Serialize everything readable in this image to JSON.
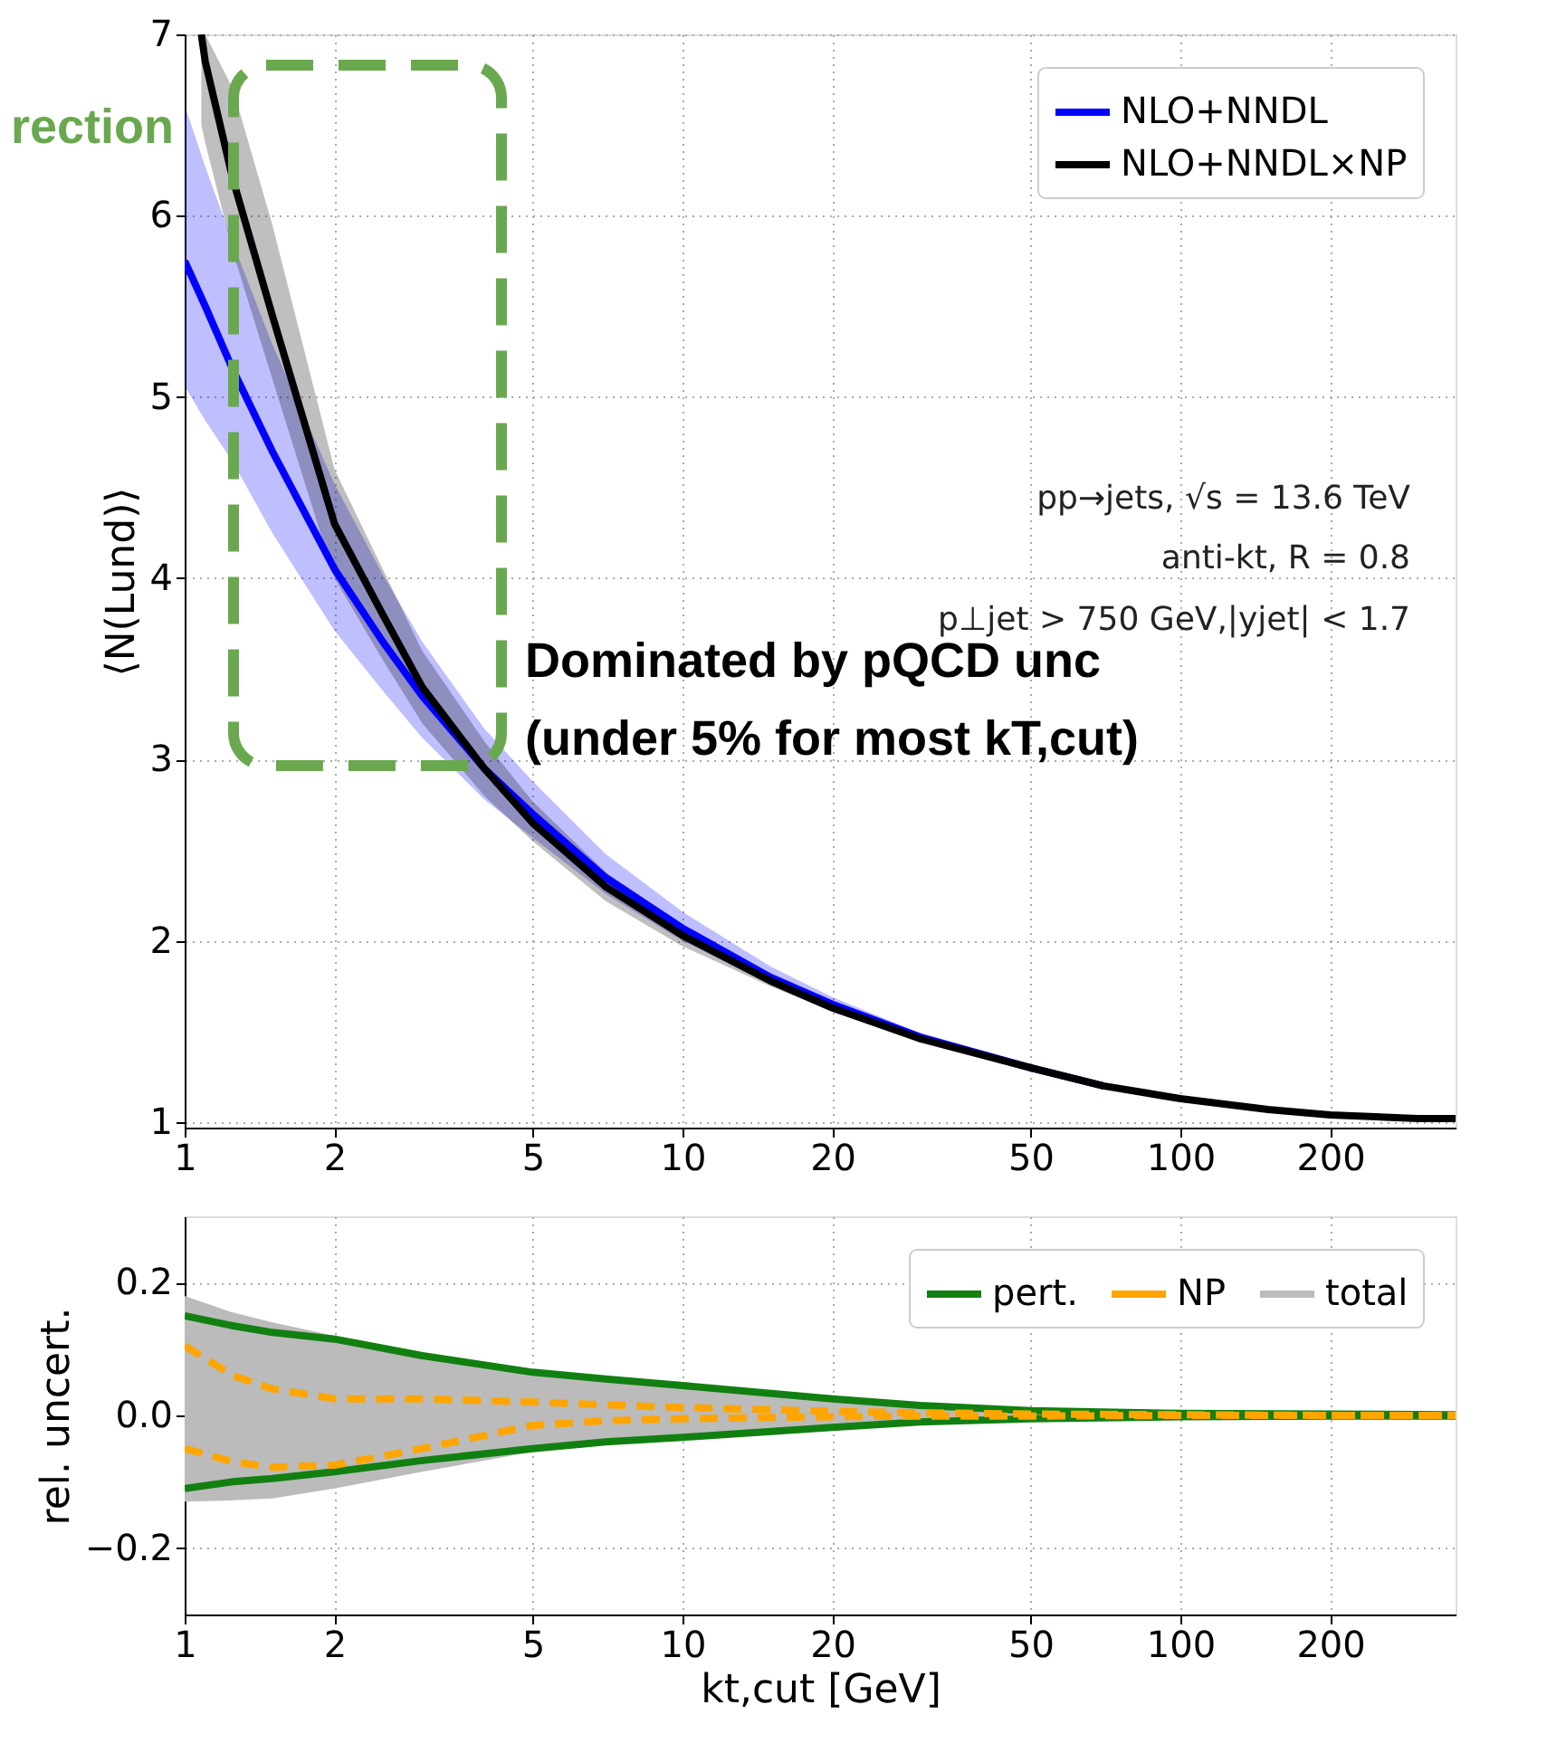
{
  "chart_data": [
    {
      "type": "line",
      "ylabel": "⟨N(Lund)⟩",
      "log": "x",
      "grid": true,
      "legend": "top right",
      "line_style": "solid",
      "xlim": [
        1,
        357
      ],
      "xticks": [
        1,
        2,
        5,
        10,
        20,
        50,
        100,
        200
      ],
      "ylim": [
        0.97,
        7
      ],
      "yticks": [
        1,
        2,
        3,
        4,
        5,
        6,
        7
      ],
      "annotations": [
        "pp→jets, √s = 13.6 TeV",
        "anti-kt, R = 0.8",
        "p⊥jet > 750 GeV,|yjet| < 1.7",
        "Dominated by pQCD unc",
        "(under 5% for most kT,cut)",
        "rection"
      ],
      "x": [
        1,
        1.1,
        1.25,
        1.5,
        2,
        2.5,
        3,
        4,
        5,
        7,
        10,
        15,
        20,
        30,
        50,
        70,
        100,
        150,
        200,
        300,
        357
      ],
      "series": [
        {
          "name": "NLO+NNDL",
          "color": "#0000ff",
          "values": [
            5.75,
            5.5,
            5.15,
            4.7,
            4.05,
            3.65,
            3.35,
            2.95,
            2.7,
            2.35,
            2.07,
            1.8,
            1.65,
            1.47,
            1.3,
            1.2,
            null,
            null,
            null,
            null,
            null
          ],
          "lower": [
            5.06,
            4.87,
            4.64,
            4.25,
            3.71,
            3.38,
            3.12,
            2.78,
            2.57,
            2.26,
            2.0,
            1.76,
            1.62,
            1.46,
            1.29,
            1.2,
            1.13,
            1.07,
            1.04,
            1.02,
            1.02
          ],
          "upper": [
            6.61,
            6.27,
            5.85,
            5.29,
            4.52,
            4.02,
            3.65,
            3.17,
            2.88,
            2.48,
            2.16,
            1.86,
            1.69,
            1.49,
            1.31,
            1.21,
            1.13,
            1.07,
            1.04,
            1.02,
            1.02
          ]
        },
        {
          "name": "NLO+NNDL×NP",
          "color": "#000000",
          "x": [
            1.08,
            1.1,
            1.25,
            1.5,
            2,
            2.5,
            3,
            4,
            5,
            7,
            10,
            15,
            20,
            30,
            50,
            70,
            100,
            150,
            200,
            300,
            357
          ],
          "values": [
            7.0,
            6.85,
            6.2,
            5.45,
            4.3,
            3.8,
            3.4,
            2.95,
            2.65,
            2.3,
            2.03,
            1.78,
            1.63,
            1.46,
            1.3,
            1.2,
            1.13,
            1.07,
            1.04,
            1.02,
            1.02
          ],
          "lower": [
            6.5,
            6.4,
            5.8,
            5.1,
            4.0,
            3.55,
            3.2,
            2.8,
            2.55,
            2.22,
            1.97,
            1.75,
            1.61,
            1.45,
            1.29,
            1.2,
            1.13,
            1.07,
            1.04,
            1.02,
            1.02
          ],
          "upper": [
            7.0,
            7.0,
            6.7,
            5.95,
            4.6,
            4.05,
            3.6,
            3.1,
            2.77,
            2.38,
            2.09,
            1.82,
            1.66,
            1.48,
            1.31,
            1.21,
            1.13,
            1.07,
            1.04,
            1.02,
            1.02
          ]
        }
      ]
    },
    {
      "type": "line",
      "xlabel": "kt,cut [GeV]",
      "ylabel": "rel. uncert.",
      "log": "x",
      "grid": true,
      "legend": "top right",
      "xlim": [
        1,
        357
      ],
      "xticks": [
        1,
        2,
        5,
        10,
        20,
        50,
        100,
        200
      ],
      "ylim": [
        -0.3,
        0.3
      ],
      "yticks": [
        {
          "value": 0.2,
          "label": "0.2"
        },
        {
          "value": 0,
          "label": "0.0"
        },
        {
          "value": -0.2,
          "label": "−0.2"
        }
      ],
      "x": [
        1,
        1.25,
        1.5,
        2,
        3,
        5,
        7,
        10,
        20,
        30,
        50,
        100,
        200,
        357
      ],
      "series": [
        {
          "name": "pert.",
          "color": "#118011",
          "line_style": "solid",
          "values": [
            0.15,
            0.135,
            0.125,
            0.115,
            0.09,
            0.065,
            0.055,
            0.045,
            0.025,
            0.015,
            0.007,
            0.003,
            0.002,
            0.001
          ]
        },
        {
          "color": "#118011",
          "line_style": "solid",
          "values": [
            -0.11,
            -0.1,
            -0.095,
            -0.085,
            -0.068,
            -0.05,
            -0.04,
            -0.033,
            -0.018,
            -0.01,
            -0.005,
            -0.002,
            -0.001,
            -0.001
          ]
        },
        {
          "name": "NP",
          "color": "#ffa500",
          "line_style": "dashed",
          "values": [
            0.105,
            0.06,
            0.04,
            0.025,
            0.025,
            0.02,
            0.016,
            0.012,
            0.006,
            0.004,
            0.002,
            0.001,
            0.0,
            0.0
          ]
        },
        {
          "color": "#ffa500",
          "line_style": "dashed",
          "values": [
            -0.05,
            -0.07,
            -0.078,
            -0.075,
            -0.05,
            -0.015,
            -0.008,
            -0.005,
            -0.002,
            -0.001,
            -0.001,
            0.0,
            0.0,
            0.0
          ]
        },
        {
          "name": "total",
          "color": "#bbbbbb",
          "values": [
            null,
            null,
            null,
            null,
            null,
            null,
            null,
            null,
            null,
            null,
            null,
            null,
            null,
            null
          ],
          "lower": [
            -0.13,
            -0.128,
            -0.125,
            -0.11,
            -0.085,
            -0.055,
            -0.045,
            -0.035,
            -0.019,
            -0.011,
            -0.006,
            -0.002,
            -0.001,
            -0.001
          ],
          "upper": [
            0.18,
            0.155,
            0.14,
            0.12,
            0.095,
            0.07,
            0.058,
            0.047,
            0.026,
            0.016,
            0.008,
            0.003,
            0.002,
            0.001
          ]
        }
      ]
    }
  ]
}
